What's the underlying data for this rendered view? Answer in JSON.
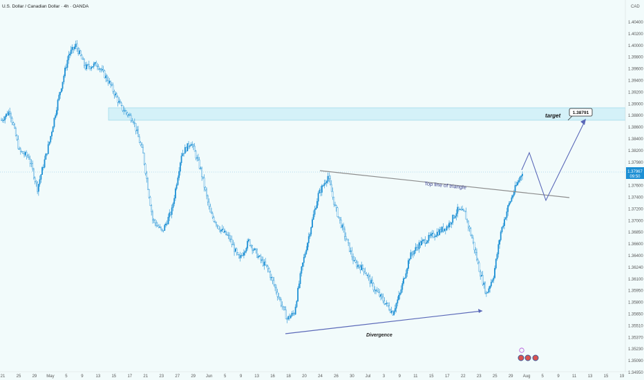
{
  "header": {
    "symbol_title": "U.S. Dollar / Canadian Dollar · 4h · OANDA",
    "currency": "CAD"
  },
  "price_axis": {
    "ticks": [
      "1.40400",
      "1.40200",
      "1.40000",
      "1.39800",
      "1.39600",
      "1.39400",
      "1.39200",
      "1.39000",
      "1.38800",
      "1.38600",
      "1.38400",
      "1.38200",
      "1.37980",
      "1.37800",
      "1.37600",
      "1.37400",
      "1.37200",
      "1.37000",
      "1.36850",
      "1.36600",
      "1.36400",
      "1.36240",
      "1.36100",
      "1.35950",
      "1.35800",
      "1.35650",
      "1.35510",
      "1.35370",
      "1.35230",
      "1.35090",
      "1.34950"
    ],
    "current_price": "1.37967",
    "countdown": "09:50"
  },
  "time_axis": {
    "ticks": [
      "21",
      "25",
      "29",
      "May",
      "5",
      "9",
      "13",
      "15",
      "17",
      "21",
      "23",
      "27",
      "29",
      "Jun",
      "5",
      "9",
      "13",
      "16",
      "18",
      "20",
      "24",
      "26",
      "30",
      "Jul",
      "3",
      "9",
      "11",
      "15",
      "17",
      "22",
      "23",
      "25",
      "29",
      "Aug",
      "5",
      "9",
      "11",
      "13",
      "15",
      "19"
    ]
  },
  "annotations": {
    "target_label": "target",
    "target_price": "1.38791",
    "triangle_label": "Top line of triangle",
    "divergence_label": "Divergence"
  },
  "colors": {
    "background": "#f2fbfb",
    "candle": "#1c8fd4",
    "zone_fill": "#c9eef7",
    "zone_border": "#8fd3e6",
    "trendline": "#8c8c8c",
    "projection": "#5a68b8",
    "current_price_tag": "#1c8fd4"
  },
  "chart_data": {
    "type": "candlestick",
    "title": "U.S. Dollar / Canadian Dollar · 4h · OANDA",
    "ylim": [
      1.3495,
      1.404
    ],
    "resistance_zone": [
      1.388,
      1.39
    ],
    "trend_points": [
      [
        0,
        1.388
      ],
      [
        7,
        1.3895
      ],
      [
        15,
        1.383
      ],
      [
        23,
        1.382
      ],
      [
        30,
        1.377
      ],
      [
        40,
        1.3845
      ],
      [
        47,
        1.391
      ],
      [
        56,
        1.3985
      ],
      [
        62,
        1.4
      ],
      [
        70,
        1.3965
      ],
      [
        80,
        1.397
      ],
      [
        90,
        1.394
      ],
      [
        100,
        1.39
      ],
      [
        110,
        1.388
      ],
      [
        118,
        1.3825
      ],
      [
        126,
        1.372
      ],
      [
        134,
        1.37
      ],
      [
        142,
        1.3735
      ],
      [
        150,
        1.3825
      ],
      [
        158,
        1.3845
      ],
      [
        166,
        1.38
      ],
      [
        174,
        1.373
      ],
      [
        182,
        1.3705
      ],
      [
        190,
        1.369
      ],
      [
        198,
        1.3655
      ],
      [
        206,
        1.3685
      ],
      [
        214,
        1.366
      ],
      [
        222,
        1.364
      ],
      [
        230,
        1.36
      ],
      [
        238,
        1.356
      ],
      [
        244,
        1.357
      ],
      [
        250,
        1.364
      ],
      [
        258,
        1.371
      ],
      [
        264,
        1.376
      ],
      [
        272,
        1.379
      ],
      [
        278,
        1.374
      ],
      [
        286,
        1.3695
      ],
      [
        294,
        1.365
      ],
      [
        302,
        1.364
      ],
      [
        310,
        1.361
      ],
      [
        318,
        1.359
      ],
      [
        326,
        1.357
      ],
      [
        332,
        1.36
      ],
      [
        340,
        1.366
      ],
      [
        348,
        1.368
      ],
      [
        356,
        1.369
      ],
      [
        364,
        1.37
      ],
      [
        372,
        1.371
      ],
      [
        380,
        1.3735
      ],
      [
        386,
        1.373
      ],
      [
        392,
        1.369
      ],
      [
        398,
        1.364
      ],
      [
        404,
        1.36
      ],
      [
        410,
        1.363
      ],
      [
        416,
        1.37
      ],
      [
        422,
        1.374
      ],
      [
        428,
        1.377
      ],
      [
        434,
        1.3797
      ]
    ]
  }
}
